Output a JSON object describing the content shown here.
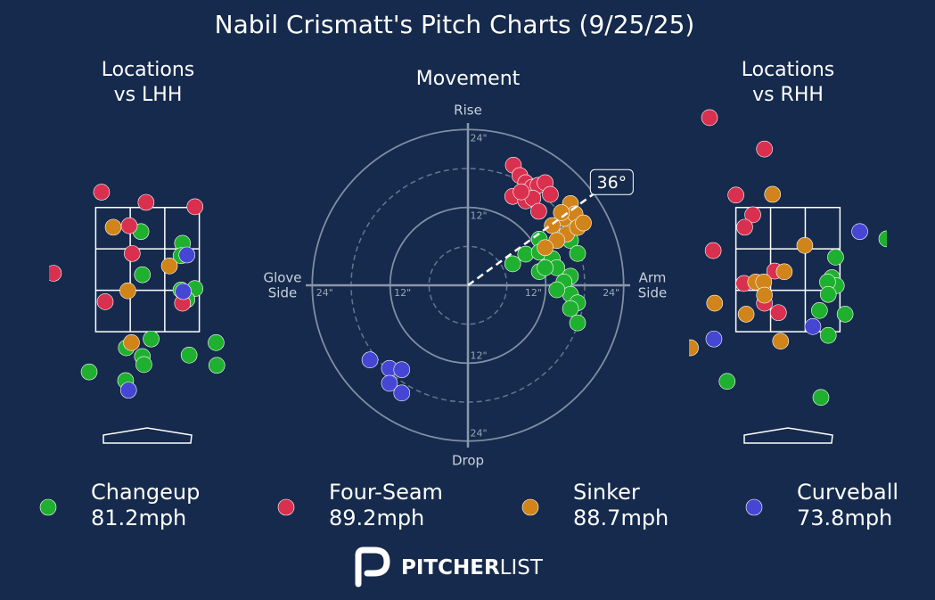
{
  "title": "Nabil Crismatt's Pitch Charts (9/25/25)",
  "legend": [
    {
      "name": "Changeup",
      "speed": "81.2mph",
      "color": "#1fb02f"
    },
    {
      "name": "Four-Seam",
      "speed": "89.2mph",
      "color": "#d9304f"
    },
    {
      "name": "Sinker",
      "speed": "88.7mph",
      "color": "#d0841a"
    },
    {
      "name": "Curveball",
      "speed": "73.8mph",
      "color": "#4646d4"
    }
  ],
  "brand": [
    "PITCHER",
    "LIST"
  ],
  "chart_data": [
    {
      "type": "scatter",
      "title": [
        "Locations",
        "vs LHH"
      ],
      "xlim": [
        -1.35,
        1.35
      ],
      "ylim": [
        0,
        4.6
      ],
      "zone": [
        -0.71,
        0.71,
        1.5,
        3.2
      ],
      "series": [
        {
          "x": [
            -0.09,
            0.48,
            0.46,
            -0.07,
            0.46,
            0.65,
            0.54,
            0.05,
            -0.29,
            -0.07,
            -0.05,
            0.94,
            0.57,
            0.95,
            -0.8,
            -0.3
          ],
          "y": [
            2.87,
            2.71,
            2.54,
            2.28,
            2.07,
            2.09,
            1.94,
            1.4,
            1.28,
            1.16,
            1.05,
            1.35,
            1.18,
            1.04,
            0.95,
            0.83
          ]
        },
        {
          "x": [
            -0.63,
            -0.02,
            0.65,
            -0.25,
            -0.21,
            -1.29,
            -0.58,
            0.48
          ],
          "y": [
            3.41,
            3.27,
            3.21,
            2.95,
            2.57,
            2.3,
            1.91,
            1.89
          ]
        },
        {
          "x": [
            -0.47,
            0.3,
            -0.27,
            -0.22
          ],
          "y": [
            2.93,
            2.4,
            2.06,
            1.35
          ]
        },
        {
          "x": [
            0.54,
            0.49,
            -0.26
          ],
          "y": [
            2.55,
            2.05,
            0.7
          ]
        }
      ]
    },
    {
      "type": "movement",
      "title": "Movement",
      "rlim": [
        0,
        25
      ],
      "rticks": [
        {
          "value": 12,
          "label": "12\""
        },
        {
          "value": 24,
          "label": "24\""
        }
      ],
      "minor_rticks": [
        6,
        18
      ],
      "rise": "Rise",
      "drop": "Drop",
      "glove_side": [
        "Glove",
        "Side"
      ],
      "arm_side": [
        "Arm",
        "Side"
      ],
      "arm_angle": {
        "value": 36,
        "label": "36°"
      },
      "series": [
        {
          "x": [
            11,
            15.8,
            8.9,
            11,
            13,
            16.9,
            6.9,
            11,
            13.7,
            15.8,
            14.8,
            15.8,
            13.7,
            16.9,
            15.8,
            16.9,
            11.9
          ],
          "y": [
            7.1,
            6.9,
            4.8,
            5.1,
            4.1,
            4.9,
            3.3,
            2.1,
            2.7,
            1.4,
            0.5,
            -1.4,
            -0.7,
            -2.7,
            -3.6,
            -5.8,
            2.7
          ]
        },
        {
          "x": [
            7,
            8,
            8.9,
            9.9,
            10.8,
            11.9,
            6.9,
            8.9,
            10,
            10.9,
            12.7,
            8.2
          ],
          "y": [
            18.5,
            16.9,
            15.8,
            15.1,
            15.4,
            15.8,
            13.7,
            13,
            13.4,
            11.4,
            14,
            14.4
          ]
        },
        {
          "x": [
            15.8,
            14.8,
            16.5,
            13,
            15.2,
            16.9,
            13.7,
            17.8,
            14.4,
            11.9
          ],
          "y": [
            12.6,
            10.3,
            11,
            9.2,
            7.9,
            8.9,
            6.9,
            9.6,
            11.2,
            5.8
          ]
        },
        {
          "x": [
            -15.1,
            -12.1,
            -10.2,
            -12.1,
            -10.2
          ],
          "y": [
            -11.5,
            -12.8,
            -13,
            -15.1,
            -16.6
          ]
        }
      ]
    },
    {
      "type": "scatter",
      "title": [
        "Locations",
        "vs RHH"
      ],
      "xlim": [
        -1.35,
        1.35
      ],
      "ylim": [
        0,
        4.6
      ],
      "zone": [
        -0.71,
        0.71,
        1.5,
        3.2
      ],
      "series": [
        {
          "x": [
            1.35,
            0.65,
            0.6,
            0.66,
            0.54,
            0.55,
            0.43,
            0.78,
            0.55,
            -0.83,
            0.45
          ],
          "y": [
            2.77,
            2.52,
            2.24,
            2.13,
            2.18,
            2.01,
            1.79,
            1.74,
            1.45,
            0.82,
            0.6
          ]
        },
        {
          "x": [
            -1.07,
            -0.32,
            -0.71,
            -0.48,
            -0.59,
            -1.02,
            -0.6,
            -0.18,
            -0.32,
            -0.13
          ],
          "y": [
            4.43,
            4,
            3.37,
            3.1,
            2.93,
            2.61,
            2.16,
            2.33,
            1.89,
            1.76
          ]
        },
        {
          "x": [
            -0.21,
            0.23,
            -0.05,
            -0.44,
            -0.33,
            -0.32,
            -1,
            -0.57,
            -0.1,
            -1.33
          ],
          "y": [
            3.38,
            2.68,
            2.32,
            2.18,
            2.18,
            2,
            1.89,
            1.74,
            1.37,
            1.28
          ]
        },
        {
          "x": [
            0.98,
            0.34,
            -1.01
          ],
          "y": [
            2.87,
            1.57,
            1.4
          ]
        }
      ]
    }
  ]
}
